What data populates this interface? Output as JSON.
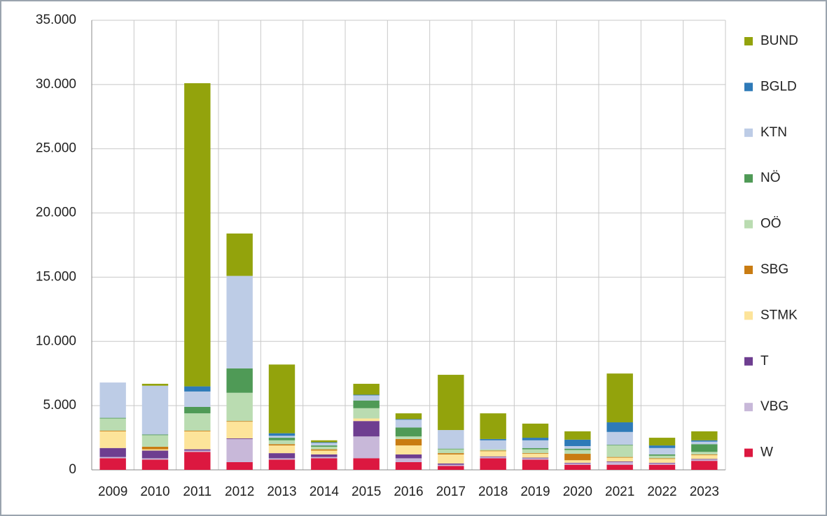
{
  "chart_data": {
    "type": "stacked_bar",
    "categories": [
      "2009",
      "2010",
      "2011",
      "2012",
      "2013",
      "2014",
      "2015",
      "2016",
      "2017",
      "2018",
      "2019",
      "2020",
      "2021",
      "2022",
      "2023"
    ],
    "series": [
      {
        "name": "W",
        "color": "#dc1840",
        "values": [
          900,
          800,
          1400,
          600,
          800,
          900,
          900,
          600,
          300,
          900,
          800,
          400,
          400,
          400,
          700
        ]
      },
      {
        "name": "VBG",
        "color": "#c8b8d9",
        "values": [
          100,
          100,
          100,
          1800,
          100,
          100,
          1700,
          300,
          100,
          100,
          100,
          100,
          200,
          100,
          100
        ]
      },
      {
        "name": "T",
        "color": "#6e3e90",
        "values": [
          700,
          600,
          100,
          50,
          400,
          200,
          1200,
          300,
          100,
          50,
          50,
          50,
          50,
          50,
          50
        ]
      },
      {
        "name": "STMK",
        "color": "#fde49a",
        "values": [
          1300,
          100,
          1400,
          1300,
          600,
          300,
          200,
          700,
          700,
          400,
          300,
          200,
          300,
          300,
          300
        ]
      },
      {
        "name": "SBG",
        "color": "#c97c12",
        "values": [
          50,
          200,
          50,
          50,
          100,
          100,
          0,
          500,
          100,
          50,
          50,
          500,
          50,
          50,
          50
        ]
      },
      {
        "name": "OÖ",
        "color": "#badcb1",
        "values": [
          950,
          900,
          1350,
          2200,
          300,
          200,
          800,
          200,
          300,
          100,
          300,
          300,
          900,
          200,
          200
        ]
      },
      {
        "name": "NÖ",
        "color": "#4f9a56",
        "values": [
          50,
          50,
          500,
          1900,
          200,
          100,
          600,
          700,
          50,
          0,
          100,
          100,
          50,
          100,
          600
        ]
      },
      {
        "name": "KTN",
        "color": "#bdcce6",
        "values": [
          2750,
          3800,
          1200,
          7200,
          150,
          200,
          400,
          600,
          1450,
          700,
          600,
          200,
          1000,
          500,
          200
        ]
      },
      {
        "name": "BGLD",
        "color": "#2e7ab8",
        "values": [
          0,
          0,
          400,
          0,
          200,
          50,
          50,
          50,
          0,
          100,
          200,
          500,
          750,
          200,
          100
        ]
      },
      {
        "name": "BUND",
        "color": "#93a30c",
        "values": [
          0,
          150,
          23600,
          3300,
          5350,
          150,
          850,
          450,
          4300,
          2000,
          1100,
          650,
          3800,
          600,
          700
        ]
      }
    ],
    "ylim": [
      0,
      35000
    ],
    "yticks": [
      0,
      {
        "value": 5000,
        "label": "5.000"
      },
      {
        "value": 10000,
        "label": "10.000"
      },
      {
        "value": 15000,
        "label": "15.000"
      },
      {
        "value": 20000,
        "label": "20.000"
      },
      {
        "value": 25000,
        "label": "25.000"
      },
      {
        "value": 30000,
        "label": "30.000"
      },
      {
        "value": 35000,
        "label": "35.000"
      }
    ],
    "grid": true,
    "legend": "right"
  }
}
